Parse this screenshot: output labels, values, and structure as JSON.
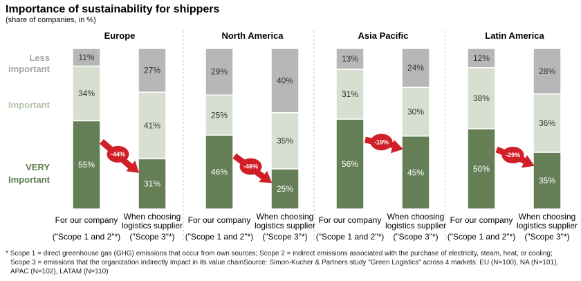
{
  "chart_data": {
    "type": "bar",
    "stacked": true,
    "title": "Importance of sustainability for shippers",
    "subtitle": "(share of companies, in %)",
    "level_labels": [
      {
        "lines": [
          "Less",
          "important"
        ],
        "color": "#a6a6a6"
      },
      {
        "lines": [
          "Important"
        ],
        "color": "#b5c4a8"
      },
      {
        "lines": [
          "VERY",
          "Important"
        ],
        "color": "#5d7d4e"
      }
    ],
    "segment_colors": {
      "very": "#647f56",
      "important": "#d7dfd0",
      "less": "#b7b7b7"
    },
    "categories": [
      {
        "lines": [
          "For our company",
          "(\"Scope 1 and 2\"*)"
        ]
      },
      {
        "lines": [
          "When choosing",
          "logistics supplier",
          "(\"Scope 3\"*)"
        ]
      }
    ],
    "panels": [
      {
        "region": "Europe",
        "bars": [
          {
            "very": 55,
            "important": 34,
            "less": 11
          },
          {
            "very": 31,
            "important": 41,
            "less": 27
          }
        ],
        "change": "-44%"
      },
      {
        "region": "North America",
        "bars": [
          {
            "very": 46,
            "important": 25,
            "less": 29
          },
          {
            "very": 25,
            "important": 35,
            "less": 40
          }
        ],
        "change": "-46%"
      },
      {
        "region": "Asia Pacific",
        "bars": [
          {
            "very": 56,
            "important": 31,
            "less": 13
          },
          {
            "very": 45,
            "important": 30,
            "less": 24
          }
        ],
        "change": "-19%"
      },
      {
        "region": "Latin America",
        "bars": [
          {
            "very": 50,
            "important": 38,
            "less": 12
          },
          {
            "very": 35,
            "important": 36,
            "less": 28
          }
        ],
        "change": "-29%"
      }
    ],
    "arrow_color": "#d01f26",
    "footnote": [
      "* Scope 1 = direct greenhouse gas (GHG) emissions that occur from own sources; Scope 2 = indirect emissions associated with the purchase of electricity, steam, heat, or cooling;",
      "Scope 3 = emissions that the organization indirectly impact in its value chainSource: Simon-Kucher & Partners study \"Green Logistics\" across 4 markets: EU (N=100), NA (N=101),",
      "APAC (N=102), LATAM (N=110)"
    ]
  }
}
